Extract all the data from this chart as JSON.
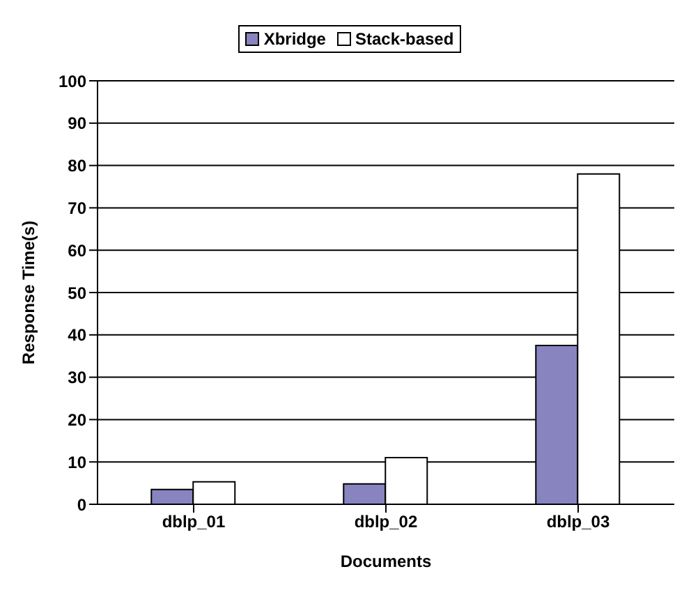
{
  "chart_data": {
    "type": "bar",
    "xlabel": "Documents",
    "ylabel": "Response Time(s)",
    "categories": [
      "dblp_01",
      "dblp_02",
      "dblp_03"
    ],
    "series": [
      {
        "name": "Xbridge",
        "color": "#8884bf",
        "values": [
          3.5,
          4.8,
          37.5
        ]
      },
      {
        "name": "Stack-based",
        "color": "#ffffff",
        "values": [
          5.3,
          11,
          78
        ]
      }
    ],
    "ylim": [
      0,
      100
    ],
    "yticks": [
      0,
      10,
      20,
      30,
      40,
      50,
      60,
      70,
      80,
      90,
      100
    ],
    "grid": "y",
    "legend": "top"
  }
}
